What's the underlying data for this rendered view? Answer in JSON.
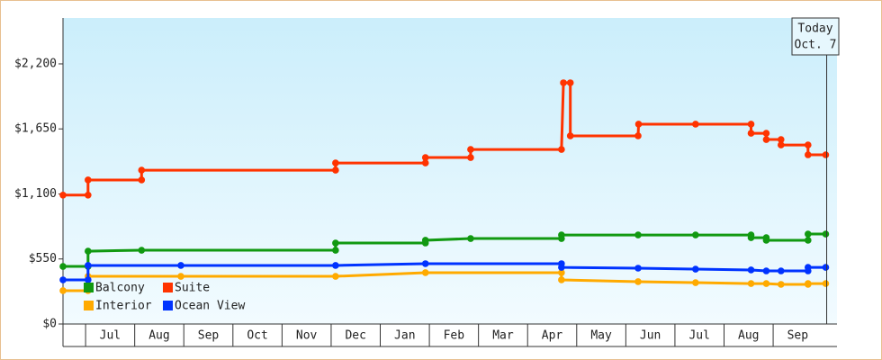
{
  "chart_data": {
    "type": "line",
    "xlim": [
      -0.46,
      15.3
    ],
    "ylim": [
      0,
      2588
    ],
    "yticks": [
      {
        "value": 0,
        "label": "$0"
      },
      {
        "value": 550,
        "label": "$550"
      },
      {
        "value": 1100,
        "label": "$1,100"
      },
      {
        "value": 1650,
        "label": "$1,650"
      },
      {
        "value": 2200,
        "label": "$2,200"
      }
    ],
    "xticks": [
      {
        "value": 0.5,
        "label": "Jul"
      },
      {
        "value": 1.5,
        "label": "Aug"
      },
      {
        "value": 2.5,
        "label": "Sep"
      },
      {
        "value": 3.5,
        "label": "Oct"
      },
      {
        "value": 4.5,
        "label": "Nov"
      },
      {
        "value": 5.5,
        "label": "Dec"
      },
      {
        "value": 6.5,
        "label": "Jan"
      },
      {
        "value": 7.5,
        "label": "Feb"
      },
      {
        "value": 8.5,
        "label": "Mar"
      },
      {
        "value": 9.5,
        "label": "Apr"
      },
      {
        "value": 10.5,
        "label": "May"
      },
      {
        "value": 11.5,
        "label": "Jun"
      },
      {
        "value": 12.5,
        "label": "Jul"
      },
      {
        "value": 13.5,
        "label": "Aug"
      },
      {
        "value": 14.5,
        "label": "Sep"
      }
    ],
    "annotation": {
      "lines": [
        "Today",
        "Oct. 7"
      ],
      "x": 15.09
    },
    "legend": "bottom-left",
    "series": [
      {
        "name": "Balcony",
        "color": "#119911",
        "x": [
          -0.46,
          0.05,
          0.05,
          1.14,
          5.09,
          5.09,
          6.92,
          6.92,
          7.84,
          9.69,
          9.69,
          11.25,
          12.42,
          13.55,
          13.55,
          13.86,
          13.86,
          14.71,
          14.71,
          15.07
        ],
        "values": [
          487,
          487,
          616,
          624,
          624,
          685,
          685,
          708,
          723,
          723,
          753,
          753,
          753,
          753,
          730,
          730,
          708,
          708,
          761,
          761
        ]
      },
      {
        "name": "Suite",
        "color": "#ff3300",
        "x": [
          -0.46,
          0.05,
          0.05,
          1.14,
          1.14,
          5.09,
          5.09,
          6.92,
          6.92,
          7.84,
          7.84,
          9.69,
          9.73,
          9.87,
          9.87,
          11.25,
          11.26,
          12.42,
          13.55,
          13.55,
          13.86,
          13.86,
          14.16,
          14.16,
          14.71,
          14.71,
          15.07
        ],
        "values": [
          1090,
          1090,
          1218,
          1218,
          1301,
          1301,
          1362,
          1362,
          1408,
          1408,
          1476,
          1476,
          2040,
          2040,
          1591,
          1591,
          1690,
          1690,
          1690,
          1613,
          1613,
          1560,
          1560,
          1514,
          1514,
          1431,
          1431
        ]
      },
      {
        "name": "Interior",
        "color": "#ffaa00",
        "x": [
          -0.46,
          0.05,
          0.05,
          1.94,
          5.09,
          6.92,
          9.69,
          9.69,
          11.25,
          12.42,
          13.55,
          13.86,
          14.16,
          14.71,
          14.71,
          15.07
        ],
        "values": [
          282,
          282,
          403,
          403,
          403,
          434,
          434,
          373,
          358,
          350,
          342,
          342,
          335,
          335,
          342,
          342
        ]
      },
      {
        "name": "Ocean View",
        "color": "#0033ff",
        "x": [
          -0.46,
          0.05,
          0.05,
          1.94,
          5.09,
          6.92,
          9.69,
          9.69,
          11.25,
          12.42,
          13.55,
          13.86,
          14.16,
          14.71,
          14.71,
          15.07
        ],
        "values": [
          373,
          373,
          495,
          495,
          495,
          510,
          510,
          479,
          472,
          464,
          457,
          449,
          449,
          449,
          479,
          479
        ]
      }
    ]
  }
}
